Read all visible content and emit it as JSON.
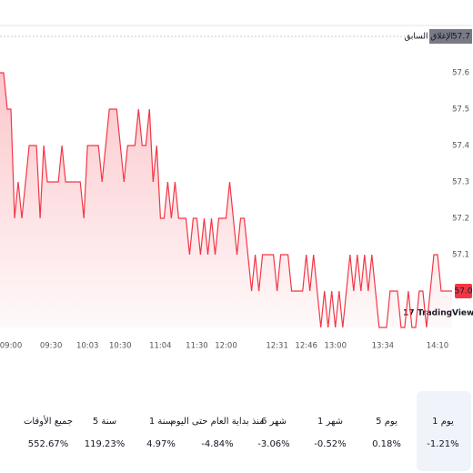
{
  "chart_data": {
    "type": "line",
    "categories": [
      null,
      null,
      "09:00",
      null,
      null,
      null,
      null,
      null,
      null,
      null,
      null,
      null,
      null,
      null,
      "09:30",
      null,
      null,
      null,
      null,
      null,
      null,
      null,
      null,
      null,
      "10:03",
      null,
      null,
      null,
      null,
      null,
      null,
      null,
      null,
      "10:30",
      null,
      null,
      null,
      null,
      null,
      null,
      null,
      null,
      null,
      null,
      "11:04",
      null,
      null,
      null,
      null,
      null,
      null,
      null,
      null,
      null,
      "11:30",
      null,
      null,
      null,
      null,
      null,
      null,
      null,
      "12:00",
      null,
      null,
      null,
      null,
      null,
      null,
      null,
      null,
      null,
      null,
      null,
      null,
      null,
      "12:31",
      null,
      null,
      null,
      null,
      null,
      null,
      null,
      "12:46",
      null,
      null,
      null,
      null,
      null,
      null,
      null,
      "13:00",
      null,
      null,
      null,
      null,
      null,
      null,
      null,
      null,
      null,
      null,
      null,
      null,
      "13:34",
      null,
      null,
      null,
      null,
      null,
      null,
      null,
      null,
      null,
      null,
      null,
      null,
      null,
      null,
      "14:10",
      null,
      null,
      null,
      null
    ],
    "series": [
      {
        "color": "#f23645",
        "values": [
          57.6,
          57.6,
          57.5,
          57.5,
          57.2,
          57.3,
          57.2,
          57.3,
          57.4,
          57.4,
          57.4,
          57.2,
          57.4,
          57.3,
          57.3,
          57.3,
          57.3,
          57.4,
          57.3,
          57.3,
          57.3,
          57.3,
          57.3,
          57.2,
          57.4,
          57.4,
          57.4,
          57.4,
          57.3,
          57.4,
          57.5,
          57.5,
          57.5,
          57.4,
          57.3,
          57.4,
          57.4,
          57.4,
          57.5,
          57.4,
          57.4,
          57.5,
          57.3,
          57.4,
          57.2,
          57.2,
          57.3,
          57.2,
          57.3,
          57.2,
          57.2,
          57.2,
          57.1,
          57.2,
          57.2,
          57.1,
          57.2,
          57.1,
          57.2,
          57.1,
          57.2,
          57.2,
          57.2,
          57.3,
          57.2,
          57.1,
          57.2,
          57.2,
          57.1,
          57.0,
          57.1,
          57.0,
          57.1,
          57.1,
          57.1,
          57.1,
          57.0,
          57.1,
          57.1,
          57.1,
          57.0,
          57.0,
          57.0,
          57.0,
          57.1,
          57.0,
          57.1,
          57.0,
          56.9,
          57.0,
          56.9,
          57.0,
          56.9,
          57.0,
          56.9,
          57.0,
          57.1,
          57.0,
          57.1,
          57.0,
          57.1,
          57.0,
          57.1,
          57.0,
          56.9,
          56.9,
          56.9,
          57.0,
          57.0,
          57.0,
          56.9,
          56.9,
          57.0,
          56.9,
          56.9,
          57.0,
          57.0,
          56.9,
          57.0,
          57.1,
          57.1,
          57.0,
          57.0,
          57.0,
          57.0
        ]
      }
    ],
    "last_value_label": "57.0",
    "ylim": [
      56.9,
      57.73
    ],
    "yticks": [
      57.1,
      57.2,
      57.3,
      57.4,
      57.5,
      57.6
    ],
    "previous_close": {
      "label": "الإغلاق السابق",
      "value": 57.7
    },
    "watermark": "TradingView",
    "periods": [
      {
        "label": "1 يوم",
        "change": "-1.21%",
        "selected": true
      },
      {
        "label": "5 يوم",
        "change": "0.18%"
      },
      {
        "label": "1 شهر",
        "change": "-0.52%"
      },
      {
        "label": "6 شهر",
        "change": "-3.06%"
      },
      {
        "label": "منذ بداية العام حتى اليوم",
        "change": "-4.84%"
      },
      {
        "label": "1 سنة",
        "change": "4.97%"
      },
      {
        "label": "5 سنة",
        "change": "119.23%"
      },
      {
        "label": "جميع الأوقات",
        "change": "552.67%"
      }
    ]
  }
}
